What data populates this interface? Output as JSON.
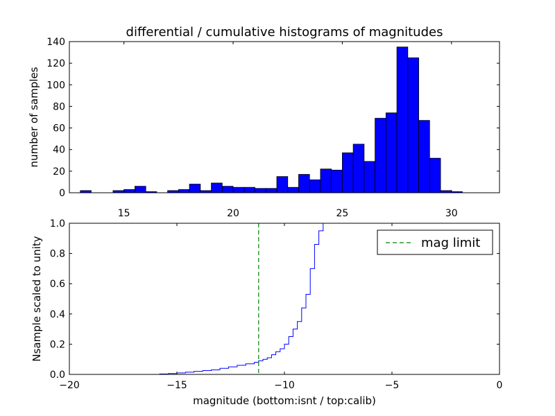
{
  "chart_data": [
    {
      "type": "bar",
      "title": "differential / cumulative histograms of magnitudes",
      "ylabel": "number of samples",
      "xlim": [
        12.5,
        32.2
      ],
      "ylim": [
        0,
        140
      ],
      "xticks": [
        15,
        20,
        25,
        30
      ],
      "yticks": [
        0,
        20,
        40,
        60,
        80,
        100,
        120,
        140
      ],
      "bin_edges": [
        13.0,
        13.5,
        14.0,
        14.5,
        15.0,
        15.5,
        16.0,
        16.5,
        17.0,
        17.5,
        18.0,
        18.5,
        19.0,
        19.5,
        20.0,
        20.5,
        21.0,
        21.5,
        22.0,
        22.5,
        23.0,
        23.5,
        24.0,
        24.5,
        25.0,
        25.5,
        26.0,
        26.5,
        27.0,
        27.5,
        28.0,
        28.5,
        29.0,
        29.5,
        30.0,
        30.5,
        31.0,
        31.5,
        32.0
      ],
      "counts": [
        2,
        0,
        0,
        2,
        3,
        6,
        1,
        0,
        2,
        3,
        8,
        2,
        9,
        6,
        5,
        5,
        4,
        4,
        15,
        5,
        17,
        12,
        22,
        21,
        37,
        45,
        29,
        69,
        74,
        135,
        125,
        67,
        32,
        2,
        1,
        0,
        0,
        0
      ],
      "color": "#0000ff",
      "edgecolor": "#000000"
    },
    {
      "type": "line",
      "xlabel": "magnitude (bottom:isnt / top:calib)",
      "ylabel": "Nsample scaled to unity",
      "xlim": [
        -20,
        0
      ],
      "ylim": [
        0,
        1.0
      ],
      "xticks": [
        -20,
        -15,
        -10,
        -5,
        0
      ],
      "yticks": [
        0.0,
        0.2,
        0.4,
        0.6,
        0.8,
        1.0
      ],
      "series": [
        {
          "color": "#0000ff",
          "step": true,
          "x": [
            -20,
            -15.8,
            -15.4,
            -15.0,
            -14.6,
            -14.2,
            -13.8,
            -13.4,
            -13.0,
            -12.6,
            -12.2,
            -11.8,
            -11.4,
            -11.2,
            -11.0,
            -10.8,
            -10.6,
            -10.4,
            -10.2,
            -10.0,
            -9.8,
            -9.6,
            -9.4,
            -9.2,
            -9.0,
            -8.8,
            -8.6,
            -8.4,
            -8.2,
            -8.0,
            -7.8,
            -7.6,
            -0.05,
            0
          ],
          "y": [
            0.0,
            0.003,
            0.006,
            0.01,
            0.015,
            0.02,
            0.025,
            0.03,
            0.04,
            0.05,
            0.06,
            0.07,
            0.08,
            0.09,
            0.1,
            0.11,
            0.13,
            0.15,
            0.17,
            0.2,
            0.25,
            0.3,
            0.35,
            0.44,
            0.53,
            0.7,
            0.86,
            0.95,
            1.0,
            1.0,
            1.0,
            1.0,
            1.0,
            1.0
          ]
        }
      ],
      "mag_limit": -11.2,
      "mag_limit_color": "#008000",
      "legend": {
        "entries": [
          "mag limit"
        ],
        "placement": "top-right"
      }
    }
  ]
}
